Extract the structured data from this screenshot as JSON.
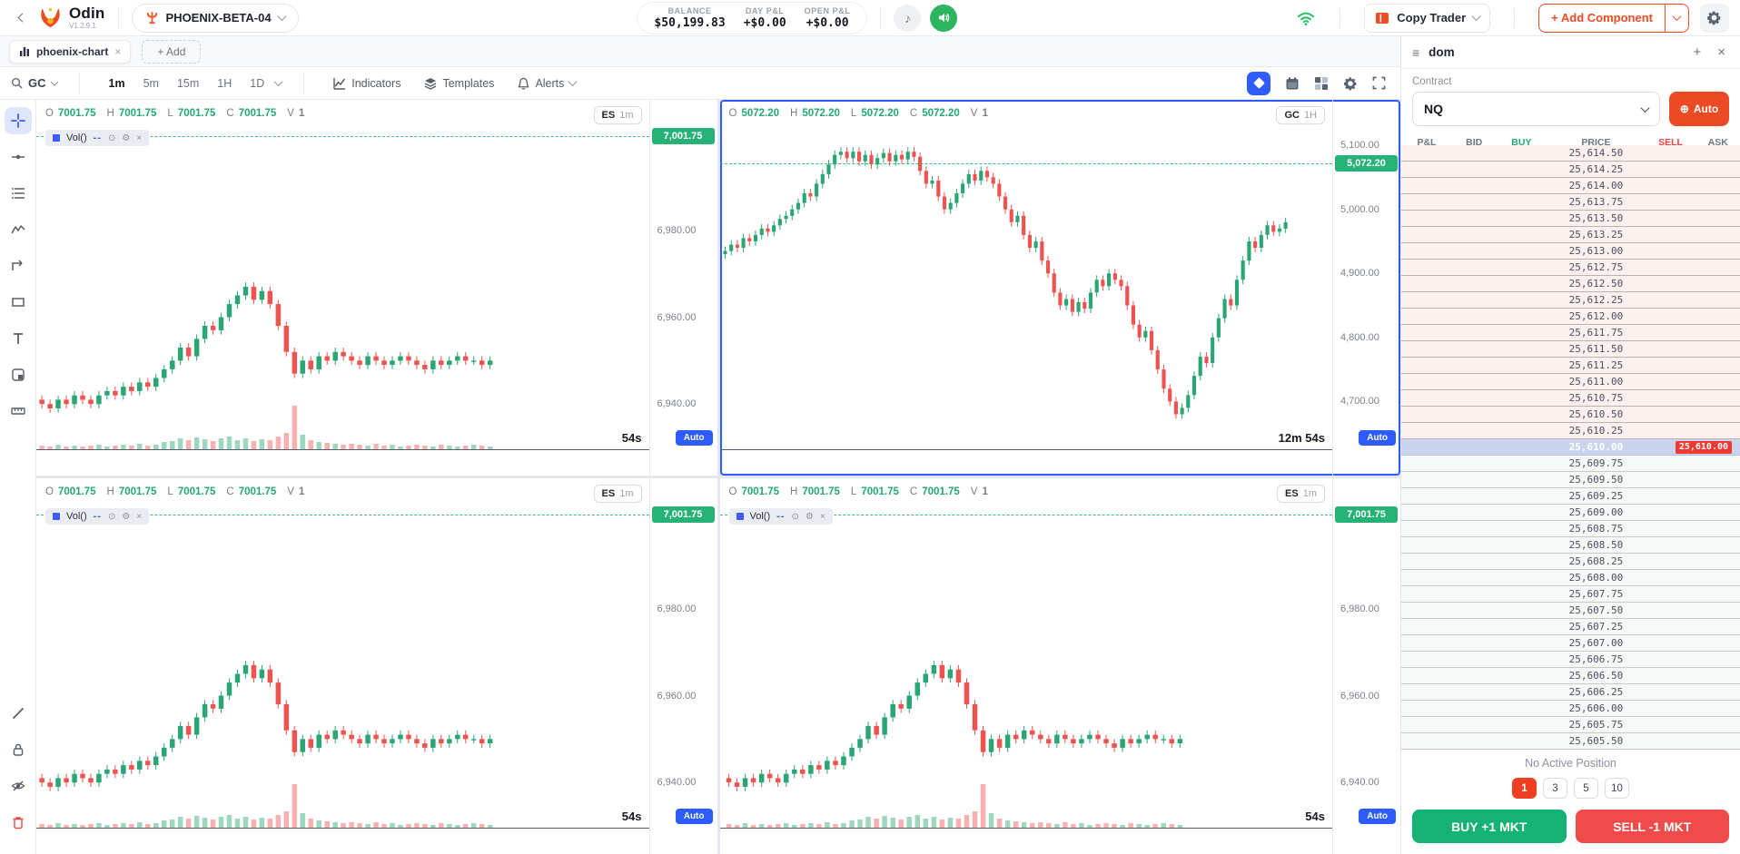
{
  "labels": {
    "o": "O",
    "h": "H",
    "l": "L",
    "c": "C",
    "v": "V",
    "vol": "Vol()",
    "dashes": "--"
  },
  "colors": {
    "candle_up": "#2aa574",
    "candle_down": "#ef5350",
    "vol_up": "rgba(42,165,116,0.45)",
    "vol_down": "rgba(239,83,80,0.45)",
    "accent": "#f04a23",
    "blue": "#2e5bff",
    "green_tag": "#26b277"
  },
  "topbar": {
    "logo_title": "Odin",
    "logo_version": "V1.2.9.1",
    "account_label": "PHOENIX-BETA-04",
    "stats": [
      {
        "label": "BALANCE",
        "value": "$50,199.83"
      },
      {
        "label": "DAY P&L",
        "value": "+$0.00"
      },
      {
        "label": "OPEN P&L",
        "value": "+$0.00"
      }
    ],
    "copy_trader_label": "Copy Trader",
    "add_component_label": "+ Add Component"
  },
  "tabs": {
    "active_tab": "phoenix-chart",
    "close_glyph": "×",
    "add_label": "+ Add"
  },
  "chart_toolbar": {
    "symbol": "GC",
    "timeframes": [
      "1m",
      "5m",
      "15m",
      "1H",
      "1D"
    ],
    "active_timeframe": "1m",
    "indicators_label": "Indicators",
    "templates_label": "Templates",
    "alerts_label": "Alerts"
  },
  "sidebar_tools": [
    "crosshair",
    "trend-line",
    "fib-lines",
    "wave-pattern",
    "path",
    "rectangle",
    "text",
    "panel",
    "ruler"
  ],
  "sidebar_tools_bottom": [
    "draw",
    "lock",
    "hide",
    "delete"
  ],
  "series": {
    "es": {
      "first_open": 6941,
      "wick": 1.0,
      "closes": [
        6940,
        6939,
        6941,
        6940,
        6942,
        6941,
        6940,
        6942,
        6943,
        6942,
        6944,
        6943,
        6945,
        6944,
        6946,
        6948,
        6950,
        6953,
        6951,
        6955,
        6958,
        6957,
        6960,
        6963,
        6965,
        6967,
        6964,
        6966,
        6963,
        6958,
        6952,
        6947,
        6950,
        6948,
        6951,
        6950,
        6952,
        6951,
        6950,
        6949,
        6951,
        6950,
        6949,
        6950,
        6951,
        6950,
        6949,
        6948,
        6950,
        6949,
        6950,
        6951,
        6950,
        6950,
        6949,
        6950
      ],
      "volumes": [
        4,
        3,
        5,
        3,
        4,
        3,
        4,
        5,
        3,
        4,
        5,
        4,
        6,
        4,
        5,
        8,
        9,
        12,
        10,
        13,
        11,
        9,
        12,
        14,
        10,
        12,
        9,
        11,
        10,
        14,
        18,
        48,
        16,
        10,
        8,
        7,
        6,
        5,
        6,
        5,
        4,
        6,
        4,
        5,
        3,
        4,
        5,
        4,
        3,
        5,
        4,
        3,
        4,
        5,
        4,
        3
      ]
    },
    "gc": {
      "first_open": 4930,
      "wick": 7,
      "closes": [
        4935,
        4945,
        4940,
        4955,
        4950,
        4960,
        4970,
        4965,
        4975,
        4985,
        4990,
        5000,
        5010,
        5025,
        5020,
        5040,
        5055,
        5070,
        5085,
        5090,
        5080,
        5090,
        5075,
        5085,
        5070,
        5080,
        5088,
        5075,
        5085,
        5078,
        5090,
        5082,
        5060,
        5040,
        5045,
        5020,
        5000,
        5010,
        5025,
        5040,
        5055,
        5045,
        5060,
        5050,
        5040,
        5020,
        5000,
        4980,
        4990,
        4960,
        4940,
        4950,
        4920,
        4900,
        4870,
        4850,
        4860,
        4840,
        4855,
        4845,
        4870,
        4890,
        4880,
        4900,
        4890,
        4880,
        4850,
        4820,
        4800,
        4810,
        4780,
        4750,
        4720,
        4700,
        4680,
        4690,
        4710,
        4740,
        4770,
        4760,
        4800,
        4830,
        4860,
        4850,
        4890,
        4920,
        4950,
        4940,
        4960,
        4975,
        4965,
        4970,
        4980
      ],
      "volumes": null
    }
  },
  "charts": [
    {
      "badge_sym": "ES",
      "badge_tf": "1m",
      "series": "es",
      "has_volume": true,
      "selected": false,
      "legend": {
        "o": "7001.75",
        "h": "7001.75",
        "l": "7001.75",
        "c": "7001.75",
        "v": "1"
      },
      "tag": "7,001.75",
      "tag_value": 7001.75,
      "range": [
        6929.4,
        7010
      ],
      "ticks": [
        {
          "label": "6,980.00",
          "v": 6980
        },
        {
          "label": "6,960.00",
          "v": 6960
        },
        {
          "label": "6,940.00",
          "v": 6940
        }
      ],
      "x_start": 0.5,
      "x_end": 75,
      "timer": "54s",
      "auto_label": "Auto"
    },
    {
      "badge_sym": "GC",
      "badge_tf": "1H",
      "series": "gc",
      "has_volume": false,
      "selected": true,
      "legend": {
        "o": "5072.20",
        "h": "5072.20",
        "l": "5072.20",
        "c": "5072.20",
        "v": "1"
      },
      "tag": "5,072.20",
      "tag_value": 5072.2,
      "range": [
        4624,
        5171
      ],
      "ticks": [
        {
          "label": "5,100.00",
          "v": 5100
        },
        {
          "label": "5,000.00",
          "v": 5000
        },
        {
          "label": "4,900.00",
          "v": 4900
        },
        {
          "label": "4,800.00",
          "v": 4800
        },
        {
          "label": "4,700.00",
          "v": 4700
        }
      ],
      "x_start": 0.5,
      "x_end": 93,
      "timer": "12m 54s",
      "auto_label": "Auto"
    },
    {
      "badge_sym": "ES",
      "badge_tf": "1m",
      "series": "es",
      "has_volume": true,
      "selected": false,
      "legend": {
        "o": "7001.75",
        "h": "7001.75",
        "l": "7001.75",
        "c": "7001.75",
        "v": "1"
      },
      "tag": "7,001.75",
      "tag_value": 7001.75,
      "range": [
        6929.4,
        7010
      ],
      "ticks": [
        {
          "label": "6,980.00",
          "v": 6980
        },
        {
          "label": "6,960.00",
          "v": 6960
        },
        {
          "label": "6,940.00",
          "v": 6940
        }
      ],
      "x_start": 0.5,
      "x_end": 75,
      "timer": "54s",
      "auto_label": "Auto"
    },
    {
      "badge_sym": "ES",
      "badge_tf": "1m",
      "series": "es",
      "has_volume": true,
      "selected": false,
      "legend": {
        "o": "7001.75",
        "h": "7001.75",
        "l": "7001.75",
        "c": "7001.75",
        "v": "1"
      },
      "tag": "7,001.75",
      "tag_value": 7001.75,
      "range": [
        6929.4,
        7010
      ],
      "ticks": [
        {
          "label": "6,980.00",
          "v": 6980
        },
        {
          "label": "6,960.00",
          "v": 6960
        },
        {
          "label": "6,940.00",
          "v": 6940
        }
      ],
      "x_start": 1,
      "x_end": 76,
      "timer": "54s",
      "auto_label": "Auto"
    }
  ],
  "dom": {
    "title": "dom",
    "contract_label": "Contract",
    "contract_value": "NQ",
    "auto_label": "Auto",
    "columns": [
      "P&L",
      "BID",
      "BUY",
      "PRICE",
      "SELL",
      "ASK"
    ],
    "prices": [
      "25,614.50",
      "25,614.25",
      "25,614.00",
      "25,613.75",
      "25,613.50",
      "25,613.25",
      "25,613.00",
      "25,612.75",
      "25,612.50",
      "25,612.25",
      "25,612.00",
      "25,611.75",
      "25,611.50",
      "25,611.25",
      "25,611.00",
      "25,610.75",
      "25,610.50",
      "25,610.25",
      "25,610.00",
      "25,609.75",
      "25,609.50",
      "25,609.25",
      "25,609.00",
      "25,608.75",
      "25,608.50",
      "25,608.25",
      "25,608.00",
      "25,607.75",
      "25,607.50",
      "25,607.25",
      "25,607.00",
      "25,606.75",
      "25,606.50",
      "25,606.25",
      "25,606.00",
      "25,605.75",
      "25,605.50"
    ],
    "highlight_price": "25,610.00",
    "highlight_badge": "25,610.00",
    "position_label": "No Active Position",
    "qty_options": [
      "1",
      "3",
      "5",
      "10"
    ],
    "qty_active": "1",
    "buy_label": "BUY +1 MKT",
    "sell_label": "SELL -1 MKT"
  }
}
